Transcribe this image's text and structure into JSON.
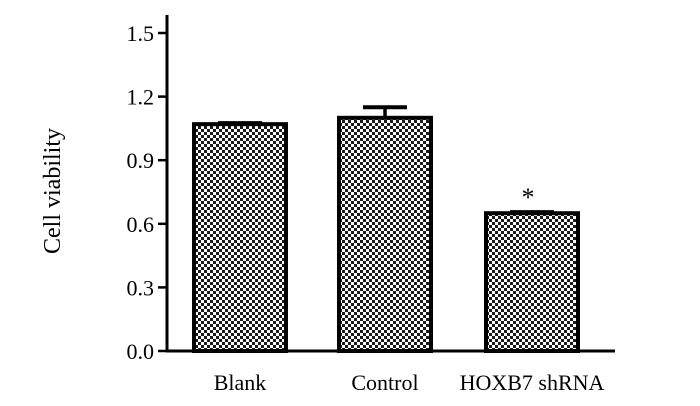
{
  "chart_data": {
    "type": "bar",
    "title": "",
    "xlabel": "",
    "ylabel": "Cell viability",
    "ylim": [
      0,
      1.6
    ],
    "yticks": [
      0.0,
      0.3,
      0.6,
      0.9,
      1.2,
      1.5
    ],
    "ytick_labels": [
      "0.0",
      "0.3",
      "0.6",
      "0.9",
      "1.2",
      "1.5"
    ],
    "categories": [
      "Blank",
      "Control",
      "HOXB7 shRNA"
    ],
    "values": [
      1.07,
      1.1,
      0.65
    ],
    "error": [
      0.005,
      0.05,
      0.005
    ],
    "annotations": [
      "",
      "",
      "*"
    ],
    "grid": false,
    "bar_fill": "checkered",
    "colors": {
      "bar_dark": "#000000",
      "bar_light": "#ffffff",
      "axis": "#000000"
    }
  }
}
